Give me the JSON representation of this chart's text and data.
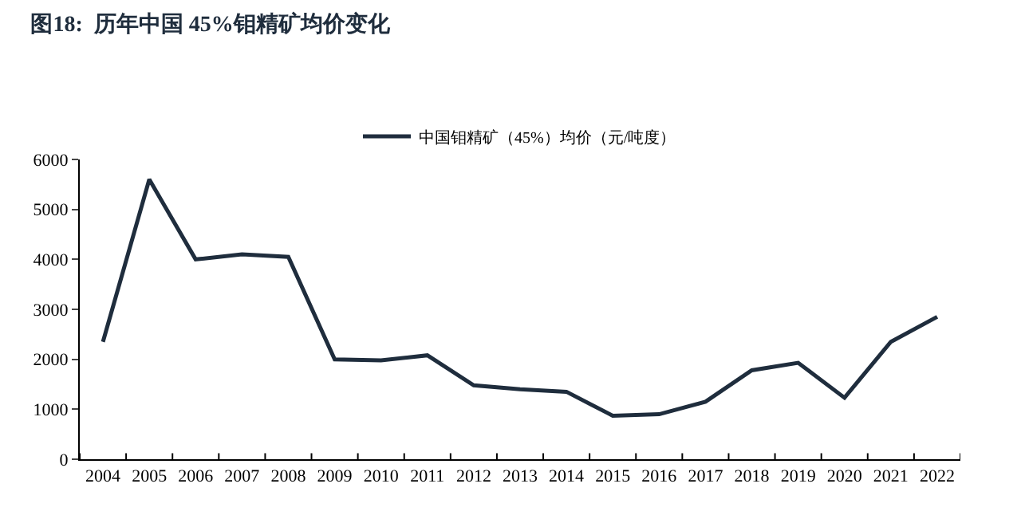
{
  "chart_data": {
    "type": "line",
    "title": "图18:  历年中国 45%钼精矿均价变化",
    "categories": [
      "2004",
      "2005",
      "2006",
      "2007",
      "2008",
      "2009",
      "2010",
      "2011",
      "2012",
      "2013",
      "2014",
      "2015",
      "2016",
      "2017",
      "2018",
      "2019",
      "2020",
      "2021",
      "2022"
    ],
    "series": [
      {
        "name": "中国钼精矿（45%）均价（元/吨度）",
        "color": "#1f2d3d",
        "values": [
          2350,
          5600,
          4000,
          4100,
          4050,
          2000,
          1980,
          2080,
          1480,
          1400,
          1350,
          870,
          900,
          1150,
          1780,
          1930,
          1230,
          2350,
          2850
        ]
      }
    ],
    "ylim": [
      0,
      6000
    ],
    "yticks": [
      0,
      1000,
      2000,
      3000,
      4000,
      5000,
      6000
    ],
    "grid": false,
    "legend": "top",
    "marker": "none",
    "line_style": "solid"
  }
}
